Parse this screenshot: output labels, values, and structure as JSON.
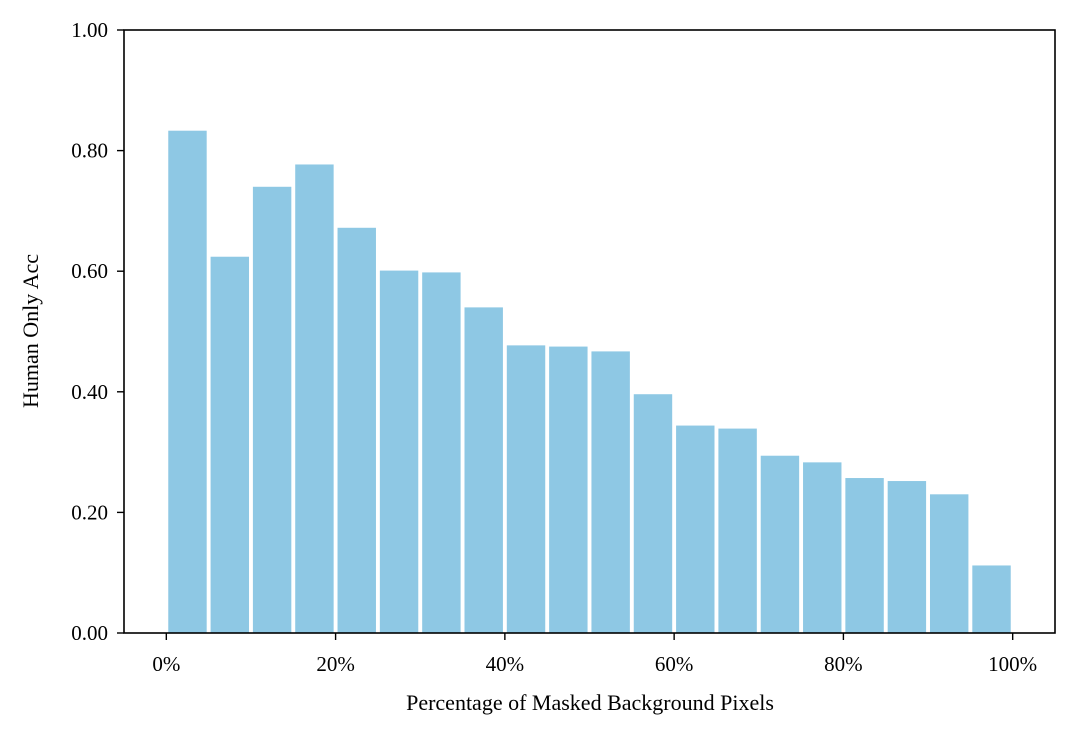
{
  "chart_data": {
    "type": "bar",
    "title": "",
    "xlabel": "Percentage of Masked Background Pixels",
    "ylabel": "Human Only Acc",
    "bins_start": [
      0,
      5,
      10,
      15,
      20,
      25,
      30,
      35,
      40,
      45,
      50,
      55,
      60,
      65,
      70,
      75,
      80,
      85,
      90,
      95
    ],
    "bin_width": 5,
    "values": [
      0.833,
      0.624,
      0.74,
      0.777,
      0.672,
      0.601,
      0.598,
      0.54,
      0.477,
      0.475,
      0.467,
      0.396,
      0.344,
      0.339,
      0.294,
      0.283,
      0.257,
      0.252,
      0.23,
      0.112
    ],
    "xlim": [
      -5,
      105
    ],
    "ylim": [
      0,
      1
    ],
    "xticks": [
      0,
      20,
      40,
      60,
      80,
      100
    ],
    "xtick_labels": [
      "0%",
      "20%",
      "40%",
      "60%",
      "80%",
      "100%"
    ],
    "yticks": [
      0,
      0.2,
      0.4,
      0.6,
      0.8,
      1.0
    ],
    "ytick_labels": [
      "0.00",
      "0.20",
      "0.40",
      "0.60",
      "0.80",
      "1.00"
    ],
    "bar_color": "#8ec8e4",
    "grid": false,
    "legend": "none"
  }
}
